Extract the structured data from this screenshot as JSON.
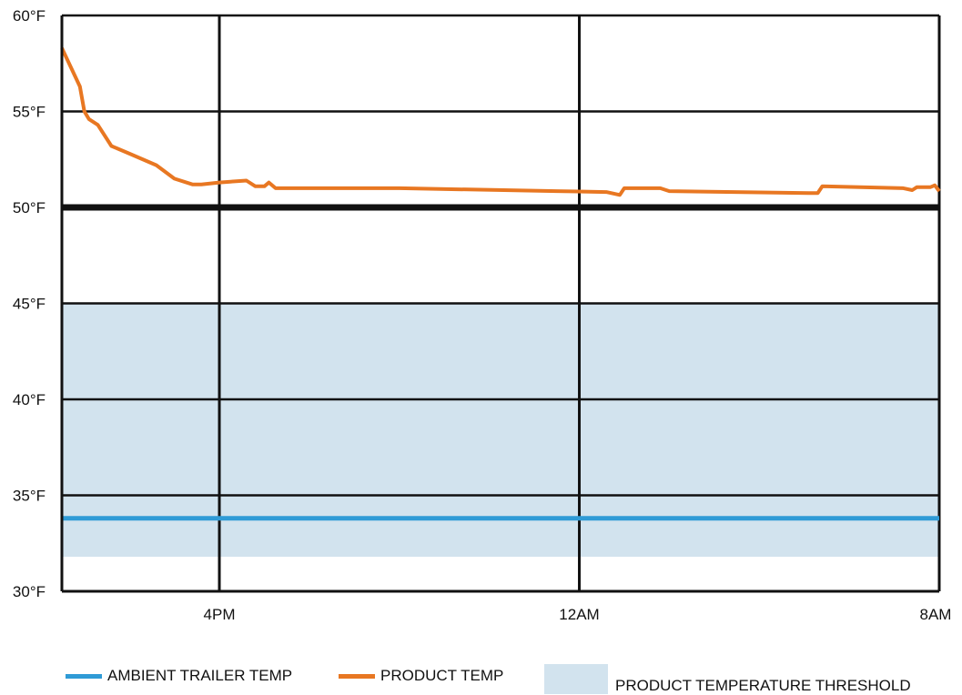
{
  "chart_data": {
    "type": "line",
    "title": "",
    "xlabel": "",
    "ylabel": "",
    "ylim": [
      30,
      60
    ],
    "yticks": [
      "30°F",
      "35°F",
      "40°F",
      "45°F",
      "50°F",
      "55°F",
      "60°F"
    ],
    "ytick_values": [
      30,
      35,
      40,
      45,
      50,
      55,
      60
    ],
    "xlim_hours": [
      12.5,
      32
    ],
    "xticks": [
      "4PM",
      "12AM",
      "8AM"
    ],
    "xtick_hours": [
      16,
      24,
      32
    ],
    "grid": true,
    "reference_line": {
      "value": 50
    },
    "threshold_band": {
      "name": "PRODUCT TEMPERATURE THRESHOLD",
      "low": 31.8,
      "high": 45,
      "color": "#d2e3ee"
    },
    "series": [
      {
        "name": "AMBIENT TRAILER TEMP",
        "color": "#2f9bd6",
        "x_hours": [
          12.5,
          32
        ],
        "y": [
          33.8,
          33.8
        ]
      },
      {
        "name": "PRODUCT TEMP",
        "color": "#e87722",
        "x_hours": [
          12.5,
          12.9,
          13.0,
          13.1,
          13.3,
          13.6,
          14.0,
          14.6,
          15.0,
          15.4,
          15.6,
          16.0,
          16.6,
          16.8,
          17.0,
          17.1,
          17.25,
          20.0,
          23.5,
          24.6,
          24.9,
          25.0,
          25.4,
          25.8,
          26.0,
          29.1,
          29.3,
          29.4,
          31.2,
          31.4,
          31.5,
          31.8,
          31.9,
          32.0
        ],
        "y": [
          58.3,
          56.3,
          55.0,
          54.6,
          54.3,
          53.2,
          52.8,
          52.2,
          51.5,
          51.2,
          51.2,
          51.3,
          51.4,
          51.1,
          51.1,
          51.3,
          51.0,
          51.0,
          50.85,
          50.8,
          50.65,
          51.0,
          51.0,
          51.0,
          50.85,
          50.75,
          50.75,
          51.1,
          51.0,
          50.9,
          51.05,
          51.05,
          51.15,
          50.85
        ]
      }
    ],
    "legend_position": "bottom"
  },
  "legend": {
    "ambient_label": "AMBIENT TRAILER TEMP",
    "product_label": "PRODUCT TEMP",
    "threshold_label": "PRODUCT TEMPERATURE THRESHOLD"
  }
}
